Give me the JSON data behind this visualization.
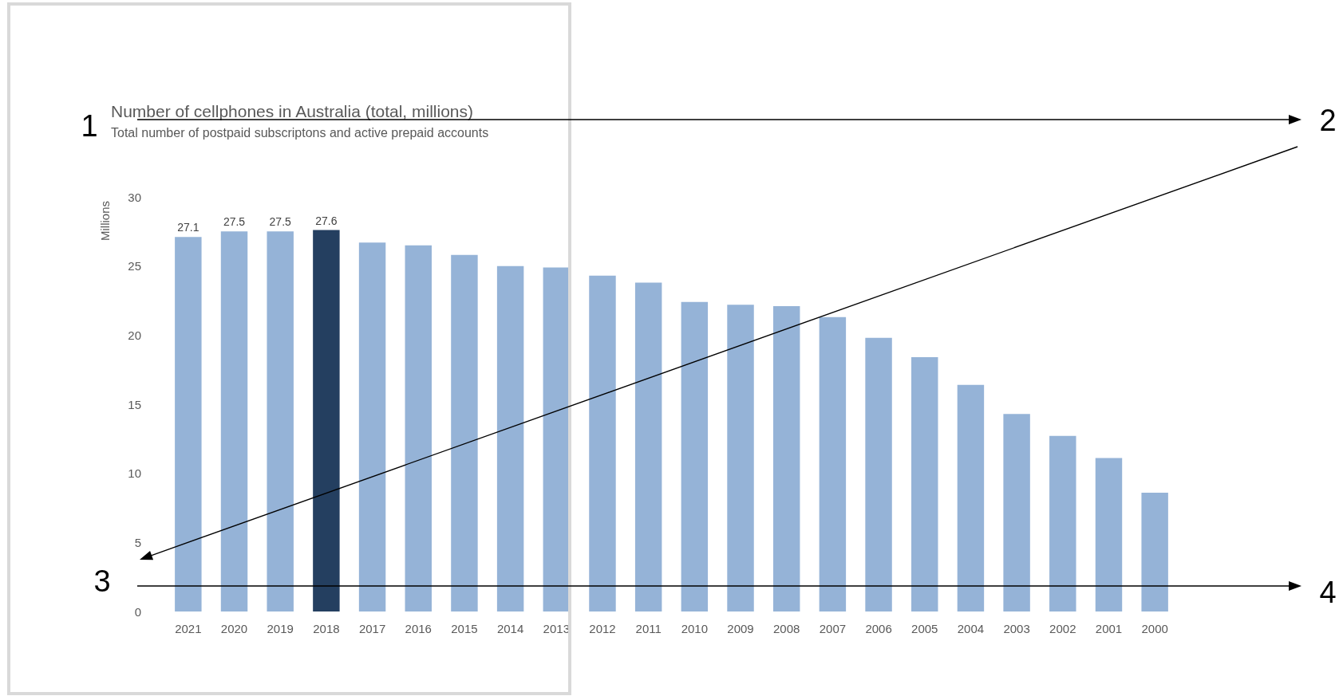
{
  "chart_data": {
    "type": "bar",
    "title": "Number of cellphones in Australia (total, millions)",
    "subtitle": "Total number of postpaid subscriptons and active prepaid accounts",
    "ylabel": "Millions",
    "categories": [
      "2021",
      "2020",
      "2019",
      "2018",
      "2017",
      "2016",
      "2015",
      "2014",
      "2013",
      "2012",
      "2011",
      "2010",
      "2009",
      "2008",
      "2007",
      "2006",
      "2005",
      "2004",
      "2003",
      "2002",
      "2001",
      "2000"
    ],
    "values": [
      27.1,
      27.5,
      27.5,
      27.6,
      26.7,
      26.5,
      25.8,
      25.0,
      24.9,
      24.3,
      23.8,
      22.4,
      22.2,
      22.1,
      21.3,
      19.8,
      18.4,
      16.4,
      14.3,
      12.7,
      11.1,
      8.6
    ],
    "colors": [
      "#95b3d7",
      "#95b3d7",
      "#95b3d7",
      "#243f60",
      "#95b3d7",
      "#95b3d7",
      "#95b3d7",
      "#95b3d7",
      "#95b3d7",
      "#95b3d7",
      "#95b3d7",
      "#95b3d7",
      "#95b3d7",
      "#95b3d7",
      "#95b3d7",
      "#95b3d7",
      "#95b3d7",
      "#95b3d7",
      "#95b3d7",
      "#95b3d7",
      "#95b3d7",
      "#95b3d7"
    ],
    "value_labels": [
      "27.1",
      "27.5",
      "27.5",
      "27.6",
      null,
      null,
      null,
      null,
      null,
      null,
      null,
      null,
      null,
      null,
      null,
      null,
      null,
      null,
      null,
      null,
      null,
      null
    ],
    "ylim": [
      0,
      30
    ],
    "yticks": [
      0,
      5,
      10,
      15,
      20,
      25,
      30
    ],
    "grid": false,
    "annotations": [
      "1",
      "2",
      "3",
      "4"
    ]
  }
}
